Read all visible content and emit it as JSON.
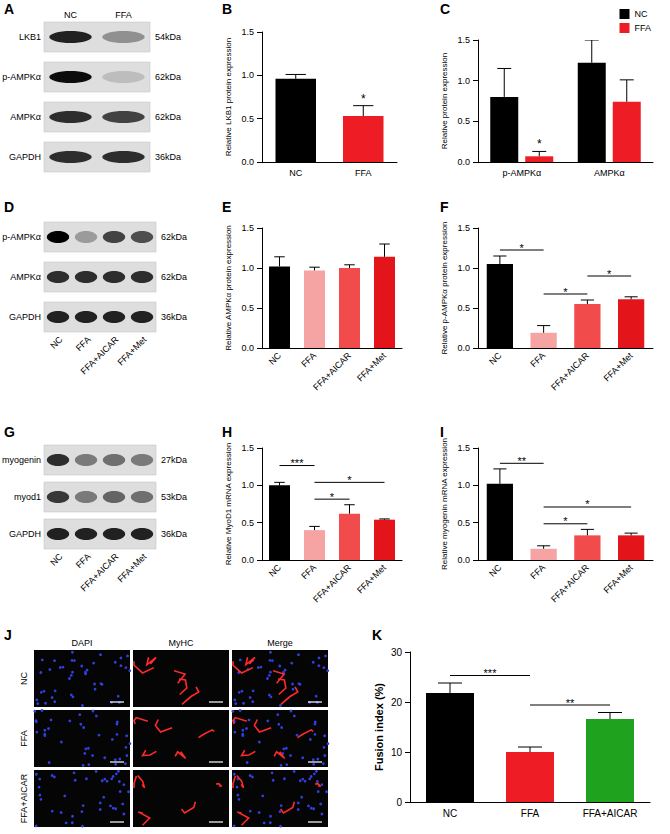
{
  "chart_data": [
    {
      "panel": "B",
      "type": "bar",
      "categories": [
        "NC",
        "FFA"
      ],
      "values": [
        0.96,
        0.53
      ],
      "errors": [
        0.05,
        0.12
      ],
      "colors": [
        "#000000",
        "#ee1c25"
      ],
      "y_label": "Relative LKB1 protein expression",
      "ylim": [
        0,
        1.5
      ],
      "yticks": [
        {
          "value": 0,
          "label": "0.0"
        },
        {
          "value": 0.5,
          "label": "0.5"
        },
        {
          "value": 1,
          "label": "1.0"
        },
        {
          "value": 1.5,
          "label": "1.5"
        }
      ],
      "grid": false,
      "annotations": [
        {
          "category": "FFA",
          "text": "*"
        }
      ]
    },
    {
      "panel": "C",
      "type": "bar",
      "categories": [
        "p-AMPKα",
        "AMPKα"
      ],
      "series": [
        {
          "name": "NC",
          "color": "#000000",
          "values": [
            0.8,
            1.22
          ],
          "errors": [
            0.35,
            0.28
          ]
        },
        {
          "name": "FFA",
          "color": "#ee1c25",
          "values": [
            0.07,
            0.74
          ],
          "errors": [
            0.06,
            0.27
          ]
        }
      ],
      "y_label": "Relative protein expression",
      "ylim": [
        0,
        1.5
      ],
      "yticks": [
        {
          "value": 0,
          "label": "0.0"
        },
        {
          "value": 0.5,
          "label": "0.5"
        },
        {
          "value": 1,
          "label": "1.0"
        },
        {
          "value": 1.5,
          "label": "1.5"
        }
      ],
      "grid": false,
      "legend": "top-right",
      "annotations": [
        {
          "category": "p-AMPKα",
          "series": "FFA",
          "text": "*"
        }
      ]
    },
    {
      "panel": "E",
      "type": "bar",
      "categories": [
        "NC",
        "FFA",
        "FFA+AICAR",
        "FFA+Met"
      ],
      "values": [
        1.02,
        0.97,
        1.0,
        1.14
      ],
      "errors": [
        0.12,
        0.04,
        0.04,
        0.16
      ],
      "colors": [
        "#000000",
        "#f5a3a3",
        "#f24b4b",
        "#e3141a"
      ],
      "y_label": "Relative AMPKα protein expression",
      "ylim": [
        0,
        1.5
      ],
      "yticks": [
        {
          "value": 0,
          "label": "0.0"
        },
        {
          "value": 0.5,
          "label": "0.5"
        },
        {
          "value": 1,
          "label": "1.0"
        },
        {
          "value": 1.5,
          "label": "1.5"
        }
      ],
      "grid": false
    },
    {
      "panel": "F",
      "type": "bar",
      "categories": [
        "NC",
        "FFA",
        "FFA+AICAR",
        "FFA+Met"
      ],
      "values": [
        1.05,
        0.19,
        0.55,
        0.61
      ],
      "errors": [
        0.1,
        0.09,
        0.05,
        0.03
      ],
      "colors": [
        "#000000",
        "#f5a3a3",
        "#f24b4b",
        "#e3141a"
      ],
      "y_label": "Relative p-AMPKα protein expression",
      "ylim": [
        0,
        1.5
      ],
      "yticks": [
        {
          "value": 0,
          "label": "0.0"
        },
        {
          "value": 0.5,
          "label": "0.5"
        },
        {
          "value": 1,
          "label": "1.0"
        },
        {
          "value": 1.5,
          "label": "1.5"
        }
      ],
      "grid": false,
      "comparisons": [
        {
          "from": "FFA",
          "to": "FFA+AICAR",
          "text": "*"
        },
        {
          "from": "FFA+AICAR",
          "to": "FFA+Met",
          "text": "*"
        },
        {
          "from": "NC",
          "to": "FFA",
          "text": "*"
        }
      ]
    },
    {
      "panel": "H",
      "type": "bar",
      "categories": [
        "NC",
        "FFA",
        "FFA+AICAR",
        "FFA+Met"
      ],
      "values": [
        1.0,
        0.4,
        0.62,
        0.54
      ],
      "errors": [
        0.04,
        0.05,
        0.12,
        0.01
      ],
      "colors": [
        "#000000",
        "#f5a3a3",
        "#f24b4b",
        "#e3141a"
      ],
      "y_label": "Relative MyoD1 mRNA expression",
      "ylim": [
        0,
        1.5
      ],
      "yticks": [
        {
          "value": 0,
          "label": "0.0"
        },
        {
          "value": 0.5,
          "label": "0.5"
        },
        {
          "value": 1,
          "label": "1.0"
        },
        {
          "value": 1.5,
          "label": "1.5"
        }
      ],
      "grid": false,
      "comparisons": [
        {
          "from": "FFA",
          "to": "FFA+AICAR",
          "text": "*"
        },
        {
          "from": "FFA",
          "to": "FFA+Met",
          "text": "*"
        },
        {
          "from": "NC",
          "to": "FFA",
          "text": "***"
        }
      ]
    },
    {
      "panel": "I",
      "type": "bar",
      "categories": [
        "NC",
        "FFA",
        "FFA+AICAR",
        "FFA+Met"
      ],
      "values": [
        1.02,
        0.15,
        0.33,
        0.33
      ],
      "errors": [
        0.2,
        0.04,
        0.08,
        0.03
      ],
      "colors": [
        "#000000",
        "#f5a3a3",
        "#f24b4b",
        "#e3141a"
      ],
      "y_label": "Relative myogenin mRNA expression",
      "ylim": [
        0,
        1.5
      ],
      "yticks": [
        {
          "value": 0,
          "label": "0.0"
        },
        {
          "value": 0.5,
          "label": "0.5"
        },
        {
          "value": 1,
          "label": "1.0"
        },
        {
          "value": 1.5,
          "label": "1.5"
        }
      ],
      "grid": false,
      "comparisons": [
        {
          "from": "FFA",
          "to": "FFA+AICAR",
          "text": "*"
        },
        {
          "from": "FFA",
          "to": "FFA+Met",
          "text": "*"
        },
        {
          "from": "NC",
          "to": "FFA",
          "text": "**"
        }
      ]
    },
    {
      "panel": "K",
      "type": "bar",
      "categories": [
        "NC",
        "FFA",
        "FFA+AICAR"
      ],
      "values": [
        21.8,
        10.0,
        16.6
      ],
      "errors": [
        2.0,
        1.0,
        1.3
      ],
      "colors": [
        "#000000",
        "#ee1c25",
        "#1fa31f"
      ],
      "y_label": "Fusion index (%)",
      "ylim": [
        0,
        30
      ],
      "yticks": [
        0,
        10,
        20,
        30
      ],
      "grid": false,
      "comparisons": [
        {
          "from": "FFA",
          "to": "FFA+AICAR",
          "text": "**"
        },
        {
          "from": "NC",
          "to": "FFA",
          "text": "***"
        }
      ]
    }
  ],
  "blots": [
    {
      "panel": "A",
      "lanes": [
        "NC",
        "FFA"
      ],
      "rows": [
        {
          "label": "LKB1",
          "size": "54kDa",
          "intensity": [
            0.85,
            0.35
          ]
        },
        {
          "label": "p-AMPKα",
          "size": "62kDa",
          "intensity": [
            0.95,
            0.15
          ]
        },
        {
          "label": "AMPKα",
          "size": "62kDa",
          "intensity": [
            0.8,
            0.7
          ]
        },
        {
          "label": "GAPDH",
          "size": "36kDa",
          "intensity": [
            0.8,
            0.8
          ]
        }
      ]
    },
    {
      "panel": "D",
      "lanes": [
        "NC",
        "FFA",
        "FFA+AICAR",
        "FFA+Met"
      ],
      "rows": [
        {
          "label": "p-AMPKα",
          "size": "62kDa",
          "intensity": [
            1.0,
            0.3,
            0.7,
            0.65
          ]
        },
        {
          "label": "AMPKα",
          "size": "62kDa",
          "intensity": [
            0.8,
            0.8,
            0.8,
            0.8
          ]
        },
        {
          "label": "GAPDH",
          "size": "36kDa",
          "intensity": [
            0.85,
            0.85,
            0.85,
            0.85
          ]
        }
      ]
    },
    {
      "panel": "G",
      "lanes": [
        "NC",
        "FFA",
        "FFA+AICAR",
        "FFA+Met"
      ],
      "rows": [
        {
          "label": "myogenin",
          "size": "27kDa",
          "intensity": [
            0.8,
            0.45,
            0.5,
            0.45
          ]
        },
        {
          "label": "myod1",
          "size": "53kDa",
          "intensity": [
            0.75,
            0.45,
            0.55,
            0.5
          ]
        },
        {
          "label": "GAPDH",
          "size": "36kDa",
          "intensity": [
            0.85,
            0.85,
            0.85,
            0.85
          ]
        }
      ]
    }
  ],
  "micrographs": {
    "panel": "J",
    "columns": [
      "DAPI",
      "MyHC",
      "Merge"
    ],
    "rows": [
      "NC",
      "FFA",
      "FFA+AICAR"
    ]
  }
}
